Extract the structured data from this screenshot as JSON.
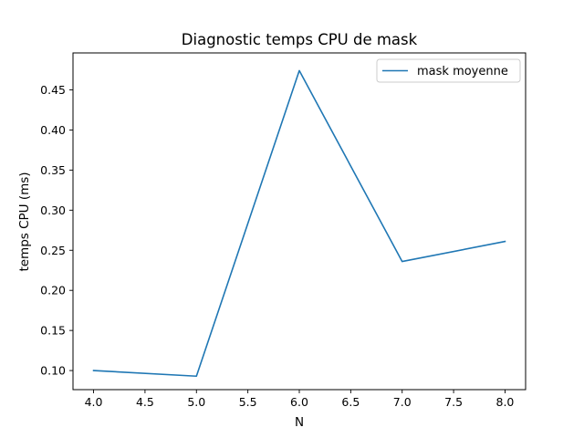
{
  "chart_data": {
    "type": "line",
    "title": "Diagnostic temps CPU de mask",
    "xlabel": "N",
    "ylabel": "temps CPU (ms)",
    "xlim": [
      3.8,
      8.2
    ],
    "ylim": [
      0.0762,
      0.4961
    ],
    "x_ticks": [
      4.0,
      4.5,
      5.0,
      5.5,
      6.0,
      6.5,
      7.0,
      7.5,
      8.0
    ],
    "x_tick_labels": [
      "4.0",
      "4.5",
      "5.0",
      "5.5",
      "6.0",
      "6.5",
      "7.0",
      "7.5",
      "8.0"
    ],
    "y_ticks": [
      0.1,
      0.15,
      0.2,
      0.25,
      0.3,
      0.35,
      0.4,
      0.45
    ],
    "y_tick_labels": [
      "0.10",
      "0.15",
      "0.20",
      "0.25",
      "0.30",
      "0.35",
      "0.40",
      "0.45"
    ],
    "grid": false,
    "legend_position": "top-right",
    "series": [
      {
        "name": "mask moyenne",
        "color": "#1f77b4",
        "x": [
          4,
          5,
          6,
          7,
          8
        ],
        "y": [
          0.1,
          0.093,
          0.474,
          0.236,
          0.261
        ]
      }
    ]
  }
}
